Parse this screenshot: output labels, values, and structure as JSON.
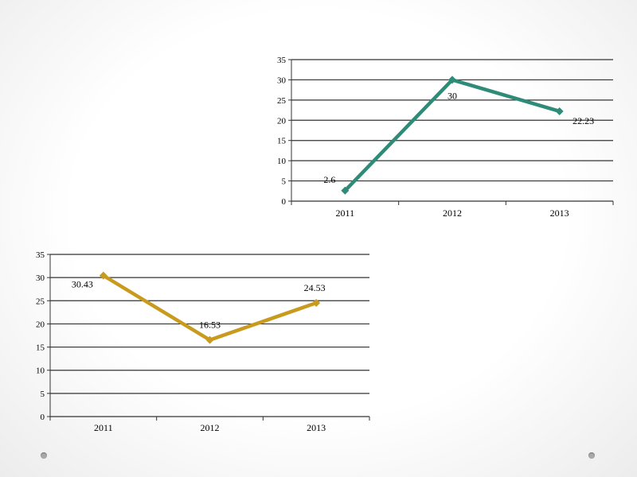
{
  "chart_data": [
    {
      "type": "line",
      "categories": [
        "2011",
        "2012",
        "2013"
      ],
      "series": [
        {
          "values": [
            2.6,
            30,
            22.23
          ],
          "color": "#2e8b78"
        }
      ],
      "data_labels": [
        "2.6",
        "30",
        "22.23"
      ],
      "y_ticks": [
        "0",
        "5",
        "10",
        "15",
        "20",
        "25",
        "30",
        "35"
      ],
      "ylim": [
        0,
        35
      ],
      "grid": true,
      "title": "",
      "xlabel": "",
      "ylabel": ""
    },
    {
      "type": "line",
      "categories": [
        "2011",
        "2012",
        "2013"
      ],
      "series": [
        {
          "values": [
            30.43,
            16.53,
            24.53
          ],
          "color": "#c89a1e"
        }
      ],
      "data_labels": [
        "30.43",
        "16.53",
        "24.53"
      ],
      "y_ticks": [
        "0",
        "5",
        "10",
        "15",
        "20",
        "25",
        "30",
        "35"
      ],
      "ylim": [
        0,
        35
      ],
      "grid": true,
      "title": "",
      "xlabel": "",
      "ylabel": ""
    }
  ]
}
